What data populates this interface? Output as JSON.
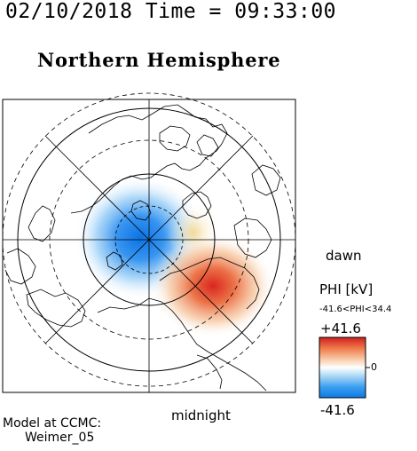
{
  "header": {
    "datetime": "02/10/2018 Time = 09:33:00",
    "title": "Northern Hemisphere"
  },
  "map": {
    "projection": "polar",
    "hemisphere": "north",
    "dashed_circles": 3,
    "solid_circles": 2,
    "meridian_lines": 4
  },
  "labels": {
    "dawn": "dawn",
    "midnight": "midnight"
  },
  "credit": {
    "line1": "Model at CCMC:",
    "line2": "Weimer_05"
  },
  "colorbar": {
    "title": "PHI [kV]",
    "range_text": "-41.6<PHI<34.4",
    "max_label": "+41.6",
    "min_label": "-41.6",
    "zero_label": "0",
    "max_value": 41.6,
    "min_value": -41.6,
    "data_min": -41.6,
    "data_max": 34.4,
    "colors": [
      "#cf1f1f",
      "#ef7a4a",
      "#f8c6a2",
      "#ffffff",
      "#a8d6f4",
      "#3b9ff0",
      "#0d7ae6"
    ]
  },
  "potential_cells": [
    {
      "sign": "negative",
      "peak_kv": -41.6,
      "location": "pre-noon / dusk side"
    },
    {
      "sign": "positive",
      "peak_kv": 34.4,
      "location": "dawn / midnight side"
    }
  ]
}
